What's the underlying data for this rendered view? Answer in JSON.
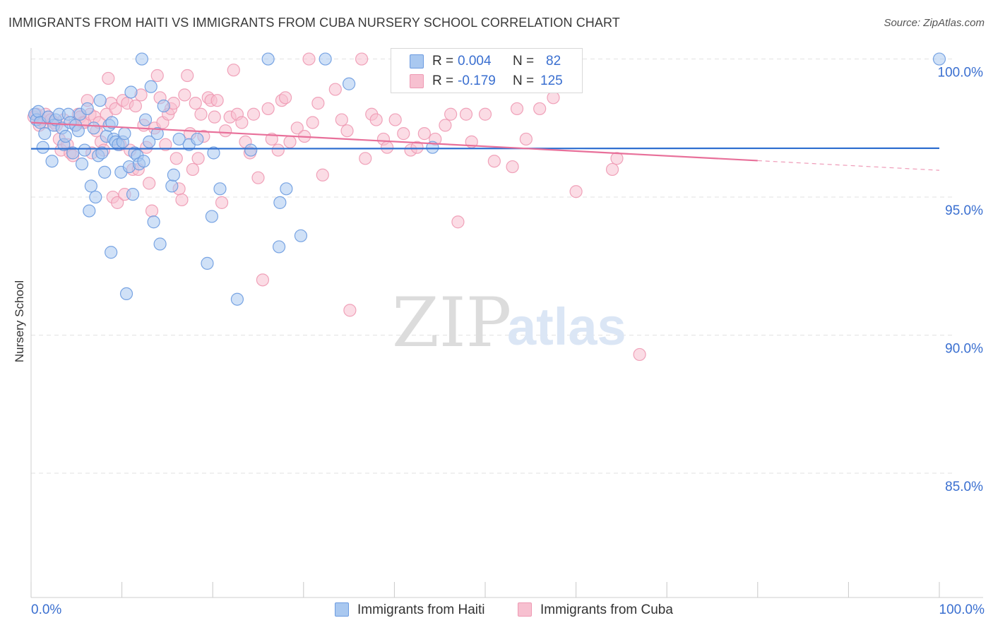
{
  "header": {
    "title": "IMMIGRANTS FROM HAITI VS IMMIGRANTS FROM CUBA NURSERY SCHOOL CORRELATION CHART",
    "source": "Source: ZipAtlas.com"
  },
  "watermark": {
    "zip": "ZIP",
    "atlas": "atlas"
  },
  "legend": {
    "haiti": {
      "r_label": "R =",
      "r_value": "0.004",
      "n_label": "N =",
      "n_value": "82"
    },
    "cuba": {
      "r_label": "R =",
      "r_value": "-0.179",
      "n_label": "N =",
      "n_value": "125"
    }
  },
  "chart_data": {
    "type": "scatter",
    "title": "IMMIGRANTS FROM HAITI VS IMMIGRANTS FROM CUBA NURSERY SCHOOL CORRELATION CHART",
    "xlabel": "",
    "ylabel": "Nursery School",
    "xlim": [
      0,
      100
    ],
    "ylim": [
      80.5,
      100.5
    ],
    "x_tick_labels": [
      "0.0%",
      "100.0%"
    ],
    "y_ticks": [
      85,
      90,
      95,
      100
    ],
    "y_tick_labels": [
      "85.0%",
      "90.0%",
      "95.0%",
      "100.0%"
    ],
    "colors": {
      "haiti_fill": "#a9c8f0",
      "haiti_stroke": "#6c9be0",
      "haiti_line": "#2f6fd0",
      "cuba_fill": "#f7c0d0",
      "cuba_stroke": "#ee99b3",
      "cuba_line": "#e8709a",
      "grid": "#e2e2e2",
      "axis_text": "#3a6fd0"
    },
    "series": [
      {
        "name": "Immigrants from Haiti",
        "R": 0.004,
        "N": 82,
        "trend": {
          "x0": 0,
          "y0": 96.75,
          "x1": 100,
          "y1": 96.77
        },
        "points": [
          [
            0.4,
            98.0
          ],
          [
            0.6,
            97.8
          ],
          [
            0.8,
            98.1
          ],
          [
            1.0,
            97.7
          ],
          [
            1.3,
            96.8
          ],
          [
            1.5,
            97.3
          ],
          [
            1.9,
            97.9
          ],
          [
            2.3,
            96.3
          ],
          [
            2.5,
            97.6
          ],
          [
            2.7,
            97.8
          ],
          [
            3.1,
            98.0
          ],
          [
            3.4,
            97.5
          ],
          [
            3.6,
            96.9
          ],
          [
            3.8,
            97.2
          ],
          [
            4.1,
            98.0
          ],
          [
            4.3,
            97.7
          ],
          [
            4.6,
            96.6
          ],
          [
            4.9,
            97.6
          ],
          [
            5.2,
            97.4
          ],
          [
            5.4,
            98.0
          ],
          [
            5.6,
            96.2
          ],
          [
            5.9,
            96.7
          ],
          [
            6.2,
            98.2
          ],
          [
            6.4,
            94.5
          ],
          [
            6.6,
            95.4
          ],
          [
            6.9,
            97.5
          ],
          [
            7.1,
            95.0
          ],
          [
            7.4,
            96.5
          ],
          [
            7.6,
            98.5
          ],
          [
            7.8,
            96.6
          ],
          [
            8.1,
            95.9
          ],
          [
            8.3,
            97.2
          ],
          [
            8.6,
            97.6
          ],
          [
            8.8,
            93.0
          ],
          [
            8.9,
            97.7
          ],
          [
            9.1,
            97.1
          ],
          [
            9.3,
            97.0
          ],
          [
            9.6,
            96.9
          ],
          [
            9.9,
            95.9
          ],
          [
            10.1,
            97.0
          ],
          [
            10.3,
            97.3
          ],
          [
            10.5,
            91.5
          ],
          [
            10.8,
            96.1
          ],
          [
            11.0,
            98.8
          ],
          [
            11.2,
            95.1
          ],
          [
            11.4,
            96.6
          ],
          [
            11.7,
            96.5
          ],
          [
            11.9,
            96.2
          ],
          [
            12.2,
            100.0
          ],
          [
            12.4,
            96.3
          ],
          [
            12.6,
            97.8
          ],
          [
            13.0,
            97.0
          ],
          [
            13.2,
            99.0
          ],
          [
            13.5,
            94.1
          ],
          [
            13.9,
            97.3
          ],
          [
            14.2,
            93.3
          ],
          [
            14.6,
            98.3
          ],
          [
            15.5,
            95.4
          ],
          [
            15.7,
            95.8
          ],
          [
            16.3,
            97.1
          ],
          [
            17.4,
            96.9
          ],
          [
            18.3,
            97.1
          ],
          [
            19.4,
            92.6
          ],
          [
            19.9,
            94.3
          ],
          [
            20.1,
            96.6
          ],
          [
            20.8,
            95.3
          ],
          [
            22.7,
            91.3
          ],
          [
            24.2,
            96.7
          ],
          [
            26.1,
            100.0
          ],
          [
            27.3,
            93.2
          ],
          [
            27.4,
            94.8
          ],
          [
            28.1,
            95.3
          ],
          [
            29.7,
            93.6
          ],
          [
            32.4,
            100.0
          ],
          [
            35.0,
            99.1
          ],
          [
            44.2,
            96.8
          ],
          [
            100.0,
            100.0
          ]
        ]
      },
      {
        "name": "Immigrants from Cuba",
        "R": -0.179,
        "N": 125,
        "trend": {
          "x0": 0,
          "y0": 97.7,
          "x1": 80,
          "y1": 96.32,
          "dash_to_x": 100,
          "dash_to_y": 95.97
        },
        "points": [
          [
            0.3,
            97.9
          ],
          [
            0.6,
            98.0
          ],
          [
            0.9,
            97.6
          ],
          [
            1.1,
            97.8
          ],
          [
            1.4,
            97.7
          ],
          [
            1.6,
            98.0
          ],
          [
            1.9,
            97.9
          ],
          [
            2.2,
            97.8
          ],
          [
            2.5,
            97.7
          ],
          [
            2.8,
            97.6
          ],
          [
            3.1,
            97.1
          ],
          [
            3.3,
            96.7
          ],
          [
            3.6,
            97.8
          ],
          [
            4.0,
            96.9
          ],
          [
            4.3,
            96.6
          ],
          [
            4.6,
            96.5
          ],
          [
            4.9,
            97.6
          ],
          [
            5.2,
            98.0
          ],
          [
            5.4,
            97.9
          ],
          [
            5.7,
            97.7
          ],
          [
            5.9,
            97.7
          ],
          [
            6.2,
            98.5
          ],
          [
            6.5,
            98.0
          ],
          [
            6.7,
            96.6
          ],
          [
            7.0,
            97.9
          ],
          [
            7.2,
            97.4
          ],
          [
            7.5,
            97.7
          ],
          [
            7.7,
            97.0
          ],
          [
            8.0,
            96.7
          ],
          [
            8.3,
            98.0
          ],
          [
            8.5,
            99.3
          ],
          [
            8.8,
            98.4
          ],
          [
            9.0,
            95.0
          ],
          [
            9.3,
            98.2
          ],
          [
            9.5,
            94.8
          ],
          [
            9.8,
            96.9
          ],
          [
            10.1,
            98.5
          ],
          [
            10.3,
            95.1
          ],
          [
            10.6,
            98.4
          ],
          [
            10.9,
            96.7
          ],
          [
            11.2,
            96.0
          ],
          [
            11.5,
            98.3
          ],
          [
            11.8,
            96.0
          ],
          [
            12.1,
            98.7
          ],
          [
            12.4,
            97.6
          ],
          [
            12.7,
            96.8
          ],
          [
            13.0,
            95.5
          ],
          [
            13.3,
            94.5
          ],
          [
            13.6,
            97.5
          ],
          [
            13.9,
            99.4
          ],
          [
            14.2,
            98.6
          ],
          [
            14.5,
            97.7
          ],
          [
            14.8,
            96.9
          ],
          [
            15.1,
            98.0
          ],
          [
            15.4,
            98.2
          ],
          [
            15.7,
            98.4
          ],
          [
            16.0,
            96.4
          ],
          [
            16.3,
            95.3
          ],
          [
            16.6,
            94.9
          ],
          [
            16.9,
            98.7
          ],
          [
            17.2,
            99.4
          ],
          [
            17.5,
            97.3
          ],
          [
            17.8,
            96.0
          ],
          [
            18.1,
            98.4
          ],
          [
            18.4,
            96.4
          ],
          [
            18.7,
            98.0
          ],
          [
            19.0,
            97.2
          ],
          [
            19.5,
            98.6
          ],
          [
            19.8,
            98.5
          ],
          [
            20.2,
            97.9
          ],
          [
            20.5,
            98.5
          ],
          [
            21.0,
            94.8
          ],
          [
            21.4,
            97.4
          ],
          [
            21.9,
            97.9
          ],
          [
            22.3,
            99.6
          ],
          [
            22.7,
            98.0
          ],
          [
            23.2,
            97.7
          ],
          [
            23.6,
            97.0
          ],
          [
            24.1,
            96.6
          ],
          [
            24.5,
            98.0
          ],
          [
            25.0,
            95.7
          ],
          [
            25.5,
            92.0
          ],
          [
            26.1,
            98.2
          ],
          [
            26.5,
            97.1
          ],
          [
            27.2,
            96.7
          ],
          [
            27.6,
            98.5
          ],
          [
            28.0,
            98.6
          ],
          [
            28.5,
            97.0
          ],
          [
            29.3,
            97.5
          ],
          [
            30.1,
            97.2
          ],
          [
            30.6,
            100.0
          ],
          [
            31.0,
            97.7
          ],
          [
            31.6,
            98.4
          ],
          [
            32.1,
            95.8
          ],
          [
            33.5,
            98.9
          ],
          [
            34.2,
            97.8
          ],
          [
            34.8,
            97.4
          ],
          [
            35.1,
            90.9
          ],
          [
            36.4,
            100.0
          ],
          [
            36.8,
            96.4
          ],
          [
            37.5,
            98.0
          ],
          [
            38.0,
            97.8
          ],
          [
            38.8,
            97.1
          ],
          [
            39.2,
            96.8
          ],
          [
            40.1,
            97.8
          ],
          [
            41.0,
            97.3
          ],
          [
            41.8,
            96.7
          ],
          [
            42.5,
            96.8
          ],
          [
            43.3,
            97.3
          ],
          [
            44.5,
            97.1
          ],
          [
            45.6,
            97.6
          ],
          [
            46.2,
            98.0
          ],
          [
            47.0,
            94.1
          ],
          [
            47.9,
            98.0
          ],
          [
            48.5,
            97.0
          ],
          [
            50.0,
            98.0
          ],
          [
            51.0,
            96.3
          ],
          [
            53.0,
            96.1
          ],
          [
            53.5,
            98.2
          ],
          [
            54.5,
            97.1
          ],
          [
            56.0,
            98.2
          ],
          [
            57.5,
            98.6
          ],
          [
            60.0,
            95.2
          ],
          [
            64.0,
            96.0
          ],
          [
            64.5,
            96.4
          ],
          [
            67.0,
            89.3
          ]
        ]
      }
    ]
  },
  "bottom_legend": {
    "haiti": "Immigrants from Haiti",
    "cuba": "Immigrants from Cuba"
  }
}
